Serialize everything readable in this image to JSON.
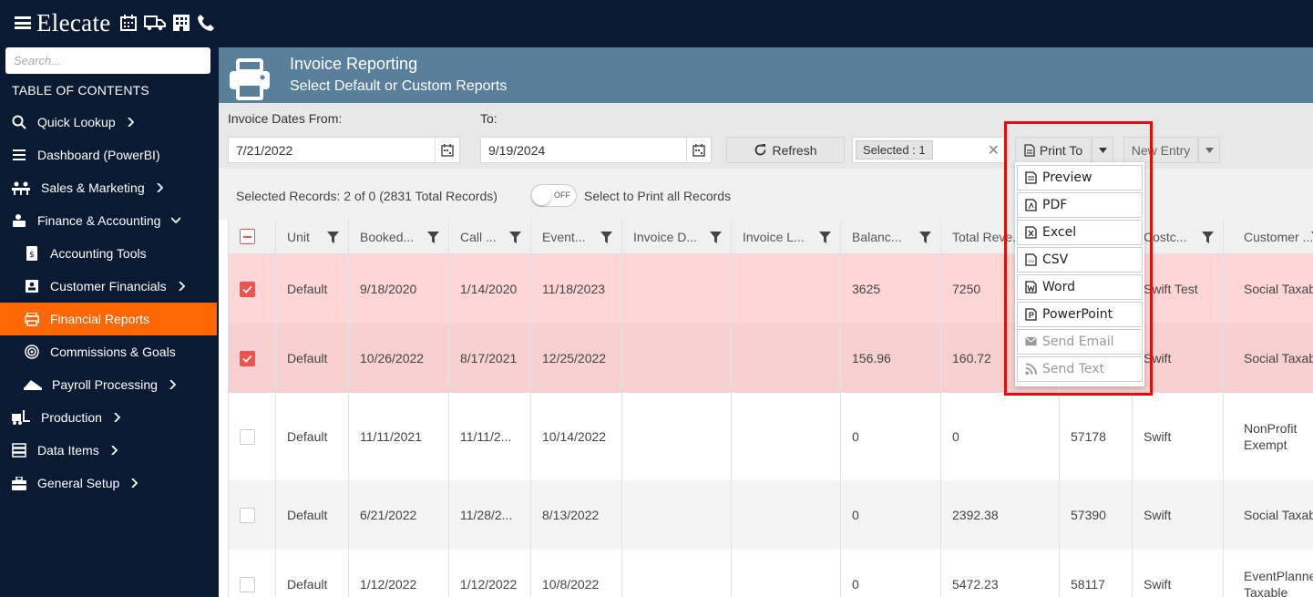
{
  "app": {
    "logo": "Elecate"
  },
  "sidebar": {
    "search_placeholder": "Search...",
    "toc_title": "TABLE OF CONTENTS",
    "items": [
      {
        "label": "Quick Lookup"
      },
      {
        "label": "Dashboard (PowerBI)"
      },
      {
        "label": "Sales & Marketing"
      },
      {
        "label": "Finance & Accounting"
      },
      {
        "label": "Accounting Tools"
      },
      {
        "label": "Customer Financials"
      },
      {
        "label": "Financial Reports"
      },
      {
        "label": "Commissions & Goals"
      },
      {
        "label": "Payroll Processing"
      },
      {
        "label": "Production"
      },
      {
        "label": "Data Items"
      },
      {
        "label": "General Setup"
      }
    ]
  },
  "header": {
    "title": "Invoice Reporting",
    "subtitle": "Select Default or Custom Reports"
  },
  "filters": {
    "from_label": "Invoice Dates From:",
    "to_label": "To:",
    "from_value": "7/21/2022",
    "to_value": "9/19/2024",
    "refresh_label": "Refresh",
    "selected_chip": "Selected : 1",
    "print_to_label": "Print To",
    "new_entry_label": "New Entry"
  },
  "records": {
    "summary": "Selected Records: 2 of 0 (2831 Total Records)",
    "toggle_state": "OFF",
    "print_all_label": "Select to Print all Records"
  },
  "grid": {
    "columns": [
      "Unit",
      "Booked...",
      "Call ...",
      "Event...",
      "Invoice D...",
      "Invoice L...",
      "Balanc...",
      "Total Reve...",
      "",
      "Costc...",
      "Customer ..."
    ],
    "rows": [
      {
        "cells": [
          "Default",
          "9/18/2020",
          "1/14/2020",
          "11/18/2023",
          "",
          "",
          "3625",
          "7250",
          "",
          "Swift Test",
          "Social Taxable"
        ]
      },
      {
        "cells": [
          "Default",
          "10/26/2022",
          "8/17/2021",
          "12/25/2022",
          "",
          "",
          "156.96",
          "160.72",
          "",
          "Swift",
          "Social Taxable"
        ]
      },
      {
        "cells": [
          "Default",
          "11/11/2021",
          "11/11/2...",
          "10/14/2022",
          "",
          "",
          "0",
          "0",
          "57178",
          "Swift",
          "NonProfit Exempt"
        ]
      },
      {
        "cells": [
          "Default",
          "6/21/2022",
          "11/28/2...",
          "8/13/2022",
          "",
          "",
          "0",
          "2392.38",
          "57390",
          "Swift",
          "Social Taxable"
        ]
      },
      {
        "cells": [
          "Default",
          "1/12/2022",
          "1/12/2022",
          "10/8/2022",
          "",
          "",
          "0",
          "5472.23",
          "58117",
          "Swift",
          "EventPlanner Taxable"
        ]
      }
    ]
  },
  "print_menu": {
    "items": [
      {
        "label": "Preview"
      },
      {
        "label": "PDF"
      },
      {
        "label": "Excel"
      },
      {
        "label": "CSV"
      },
      {
        "label": "Word"
      },
      {
        "label": "PowerPoint"
      },
      {
        "label": "Send Email"
      },
      {
        "label": "Send Text"
      }
    ]
  },
  "colors": {
    "navy": "#0b1a33",
    "accent": "#fd6704",
    "header": "#5a7f9b",
    "selected_row": "#ffd6d6",
    "highlight_box": "#e30d0d"
  }
}
